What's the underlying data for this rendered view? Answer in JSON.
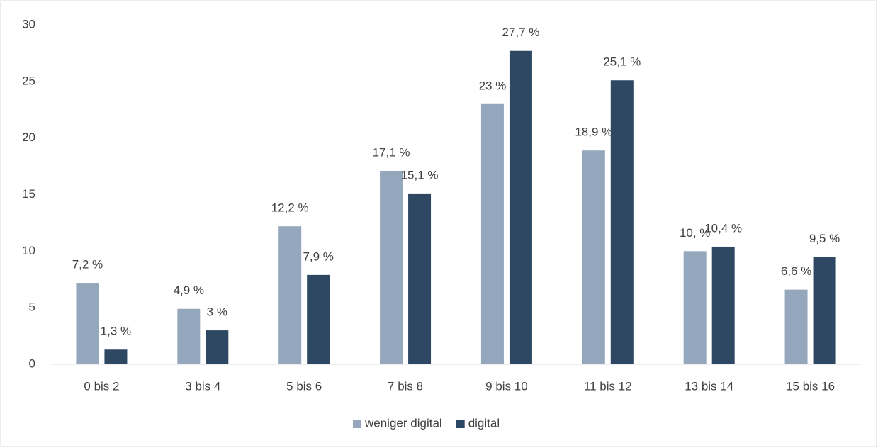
{
  "chart_data": {
    "type": "bar",
    "categories": [
      "0 bis 2",
      "3 bis 4",
      "5 bis 6",
      "7 bis 8",
      "9 bis 10",
      "11 bis 12",
      "13 bis 14",
      "15 bis 16"
    ],
    "series": [
      {
        "name": "weniger digital",
        "color": "#94a7bc",
        "values": [
          7.2,
          4.9,
          12.2,
          17.1,
          23,
          18.9,
          10,
          6.6
        ],
        "value_labels": [
          "7,2 %",
          "4,9 %",
          "12,2 %",
          "17,1 %",
          "23 %",
          "18,9 %",
          "10, %",
          "6,6 %"
        ]
      },
      {
        "name": "digital",
        "color": "#2e4763",
        "values": [
          1.3,
          3,
          7.9,
          15.1,
          27.7,
          25.1,
          10.4,
          9.5
        ],
        "value_labels": [
          "1,3 %",
          "3 %",
          "7,9 %",
          "15,1 %",
          "27,7 %",
          "25,1 %",
          "10,4 %",
          "9,5 %"
        ]
      }
    ],
    "ylim": [
      0,
      30
    ],
    "yticks": [
      0,
      5,
      10,
      15,
      20,
      25,
      30
    ],
    "grid": false,
    "legend": "bottom"
  }
}
